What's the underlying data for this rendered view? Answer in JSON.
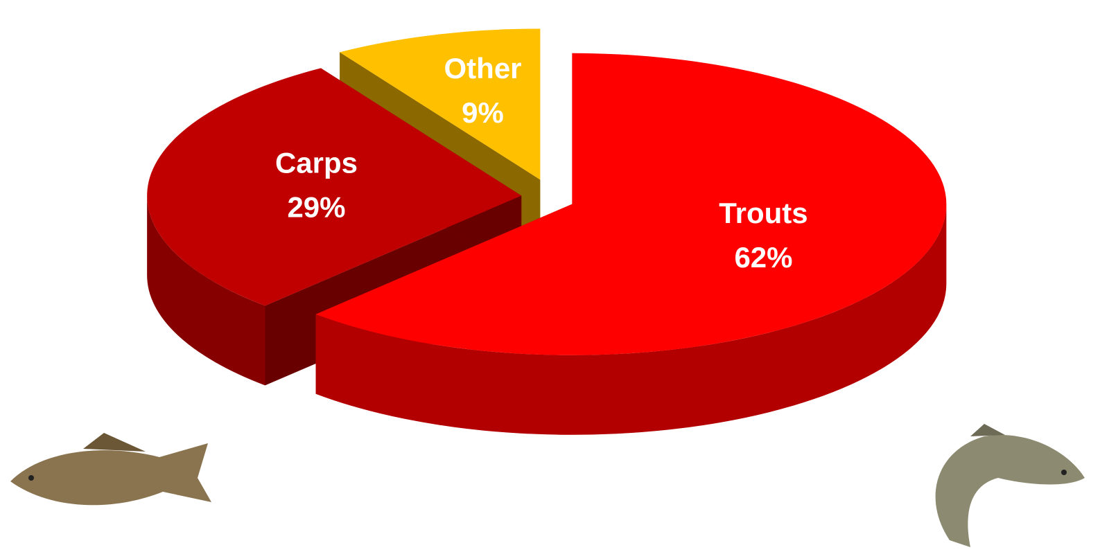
{
  "chart_data": {
    "type": "pie",
    "categories": [
      "Trouts",
      "Carps",
      "Other"
    ],
    "values": [
      62,
      29,
      9
    ],
    "value_labels": [
      "62%",
      "29%",
      "9%"
    ],
    "colors": [
      "#ff0000",
      "#c00000",
      "#ffc000"
    ]
  }
}
